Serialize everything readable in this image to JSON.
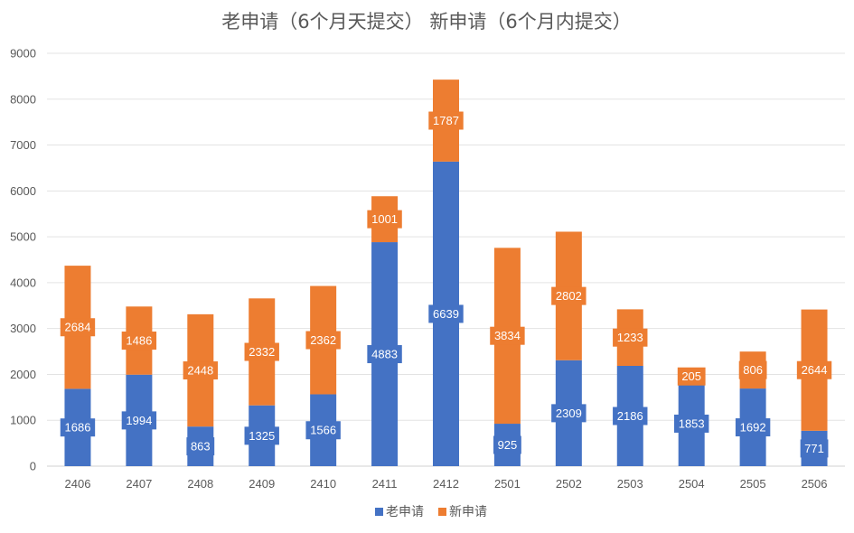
{
  "chart_data": {
    "type": "bar",
    "stacked": true,
    "title": "老申请（6个月天提交） 新申请（6个月内提交）",
    "categories": [
      "2406",
      "2407",
      "2408",
      "2409",
      "2410",
      "2411",
      "2412",
      "2501",
      "2502",
      "2503",
      "2504",
      "2505",
      "2506"
    ],
    "series": [
      {
        "name": "老申请",
        "color": "#4472C4",
        "values": [
          1686,
          1994,
          863,
          1325,
          1566,
          4883,
          6639,
          925,
          2309,
          2186,
          1853,
          1692,
          771
        ],
        "labels_shown": [
          true,
          true,
          true,
          true,
          true,
          true,
          true,
          true,
          true,
          true,
          true,
          true,
          true
        ]
      },
      {
        "name": "新申请",
        "color": "#ED7D31",
        "values": [
          2684,
          1486,
          2448,
          2332,
          2362,
          1001,
          1787,
          3834,
          2802,
          1233,
          205,
          806,
          2644
        ],
        "labels_shown": [
          true,
          true,
          true,
          true,
          true,
          true,
          true,
          true,
          true,
          true,
          true,
          true,
          true
        ]
      }
    ],
    "ylim": [
      0,
      9000
    ],
    "yticks": [
      0,
      1000,
      2000,
      3000,
      4000,
      5000,
      6000,
      7000,
      8000,
      9000
    ],
    "grid": true,
    "legend": "bottom",
    "xlabel": "",
    "ylabel": ""
  }
}
